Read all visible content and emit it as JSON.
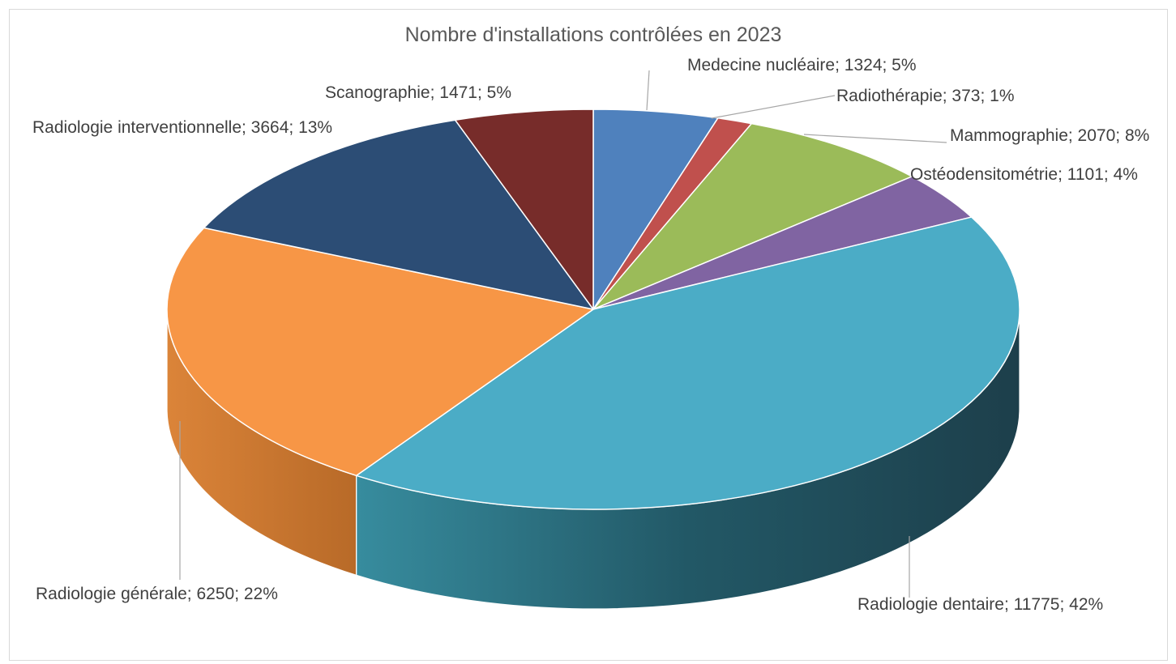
{
  "chart_data": {
    "type": "pie",
    "style": "3d",
    "title": "Nombre d'installations contrôlées en 2023",
    "slices": [
      {
        "label": "Medecine nucléaire",
        "value": 1324,
        "percent": "5%",
        "color": "#4F81BD",
        "display": "Medecine nucléaire; 1324; 5%"
      },
      {
        "label": "Radiothérapie",
        "value": 373,
        "percent": "1%",
        "color": "#C0504D",
        "display": "Radiothérapie; 373; 1%"
      },
      {
        "label": "Mammographie",
        "value": 2070,
        "percent": "8%",
        "color": "#9BBB59",
        "display": "Mammographie; 2070; 8%"
      },
      {
        "label": "Ostéodensitométrie",
        "value": 1101,
        "percent": "4%",
        "color": "#8064A2",
        "display": "Ostéodensitométrie; 1101; 4%"
      },
      {
        "label": "Radiologie dentaire",
        "value": 11775,
        "percent": "42%",
        "color": "#4BACC6",
        "display": "Radiologie dentaire; 11775; 42%"
      },
      {
        "label": "Radiologie générale",
        "value": 6250,
        "percent": "22%",
        "color": "#F79646",
        "display": "Radiologie générale; 6250; 22%"
      },
      {
        "label": "Radiologie interventionnelle",
        "value": 3664,
        "percent": "13%",
        "color": "#2C4D75",
        "display": "Radiologie interventionnelle; 3664; 13%"
      },
      {
        "label": "Scanographie",
        "value": 1471,
        "percent": "5%",
        "color": "#772C2A",
        "display": "Scanographie; 1471; 5%"
      }
    ],
    "legend": "none"
  }
}
